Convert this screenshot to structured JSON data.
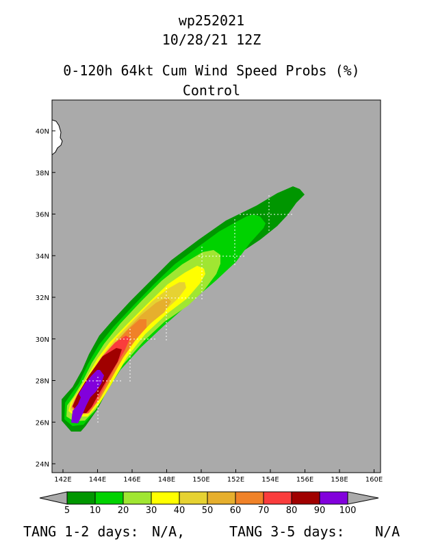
{
  "header": {
    "storm_id": "wp252021",
    "datetime": "10/28/21 12Z",
    "product": "0-120h 64kt Cum Wind Speed Probs (%)",
    "member": "Control"
  },
  "map": {
    "background_color": "#aaaaaa",
    "land_color": "#ffffff",
    "lon_range": [
      142,
      160
    ],
    "lat_range": [
      24,
      41
    ],
    "lon_ticks": [
      "142E",
      "144E",
      "146E",
      "148E",
      "150E",
      "152E",
      "154E",
      "156E",
      "158E",
      "160E"
    ],
    "lat_ticks": [
      "24N",
      "26N",
      "28N",
      "30N",
      "32N",
      "34N",
      "36N",
      "38N",
      "40N"
    ]
  },
  "colorbar": {
    "labels": [
      "5",
      "10",
      "20",
      "30",
      "40",
      "50",
      "60",
      "70",
      "80",
      "90",
      "100"
    ],
    "colors": [
      "#009600",
      "#00d200",
      "#a0e632",
      "#ffff00",
      "#e6d232",
      "#e6af2d",
      "#f08228",
      "#fa3c3c",
      "#a00000",
      "#8200dc"
    ],
    "arrow_color": "#aaaaaa"
  },
  "footer": {
    "tang_12_label": "TANG 1-2 days:",
    "tang_12_value": "N/A,",
    "tang_35_label": "TANG 3-5 days:",
    "tang_35_value": "N/A"
  }
}
